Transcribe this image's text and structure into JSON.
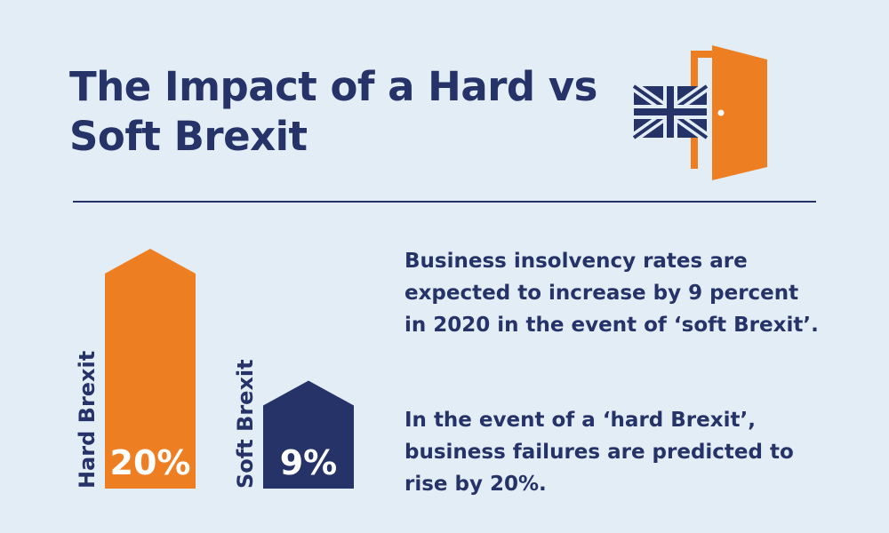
{
  "header": {
    "title": "The Impact of a Hard vs Soft Brexit"
  },
  "icons": [
    "union-jack-flag-icon",
    "open-door-icon"
  ],
  "colors": {
    "background": "#e3edf6",
    "navy": "#263368",
    "orange": "#ee7e22",
    "white": "#ffffff"
  },
  "chart_data": {
    "type": "bar",
    "categories": [
      "Hard Brexit",
      "Soft Brexit"
    ],
    "values": [
      20,
      9
    ],
    "value_labels": [
      "20%",
      "9%"
    ],
    "colors": [
      "#ee7e22",
      "#263368"
    ],
    "bar_shape": "arrow-up",
    "category_label_orientation": "vertical"
  },
  "text": {
    "paragraph1": "Business insolvency rates are expected to increase by 9 percent in 2020 in the event of ‘soft Brexit’.",
    "paragraph2": "In the event of a ‘hard Brexit’, business failures are predicted to rise by 20%."
  }
}
